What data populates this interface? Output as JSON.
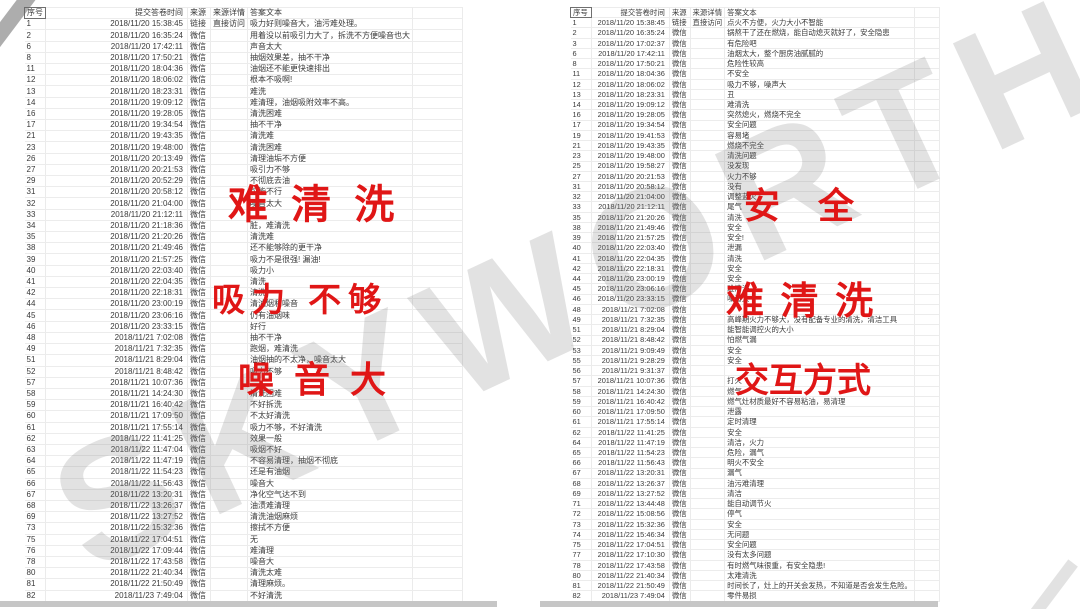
{
  "colors": {
    "accent_red": "#e01616",
    "watermark_gray": "#7d7d7d",
    "grid_line": "#ececec"
  },
  "watermark": {
    "text": "SKYWORTH"
  },
  "overlays": [
    {
      "text": "难 清 洗"
    },
    {
      "text": "吸力 不够"
    },
    {
      "text": "噪 音 大"
    },
    {
      "text": "安 全"
    },
    {
      "text": "难 清 洗"
    },
    {
      "text": "交互方式"
    }
  ],
  "sheets": {
    "left": {
      "headers": [
        "序号",
        "提交答卷时间",
        "来源",
        "来源详情",
        "答案文本",
        ""
      ],
      "rows": [
        [
          "1",
          "2018/11/20 15:38:45",
          "链接",
          "直接访问",
          "吸力好则噪音大，油污难处理。"
        ],
        [
          "2",
          "2018/11/20 16:35:24",
          "微信",
          "",
          "用着没以前吸引力大了，拆洗不方便噪音也大"
        ],
        [
          "6",
          "2018/11/20 17:42:11",
          "微信",
          "",
          "声音太大"
        ],
        [
          "8",
          "2018/11/20 17:50:21",
          "微信",
          "",
          "抽烟效果差，抽不干净"
        ],
        [
          "11",
          "2018/11/20 18:04:36",
          "微信",
          "",
          "油烟还不能更快速排出"
        ],
        [
          "12",
          "2018/11/20 18:06:02",
          "微信",
          "",
          "根本不吸啊!"
        ],
        [
          "13",
          "2018/11/20 18:23:31",
          "微信",
          "",
          "难洗"
        ],
        [
          "14",
          "2018/11/20 19:09:12",
          "微信",
          "",
          "难清理，油烟吸附效率不高。"
        ],
        [
          "16",
          "2018/11/20 19:28:05",
          "微信",
          "",
          "清洗困难"
        ],
        [
          "17",
          "2018/11/20 19:34:54",
          "微信",
          "",
          "抽不干净"
        ],
        [
          "21",
          "2018/11/20 19:43:35",
          "微信",
          "",
          "清洗难"
        ],
        [
          "23",
          "2018/11/20 19:48:00",
          "微信",
          "",
          "清洗困难"
        ],
        [
          "26",
          "2018/11/20 20:13:49",
          "微信",
          "",
          "清理油垢不方便"
        ],
        [
          "27",
          "2018/11/20 20:21:53",
          "微信",
          "",
          "吸引力不够"
        ],
        [
          "29",
          "2018/11/20 20:52:29",
          "微信",
          "",
          "不彻底去油"
        ],
        [
          "31",
          "2018/11/20 20:58:12",
          "微信",
          "",
          "可能不行"
        ],
        [
          "32",
          "2018/11/20 21:04:00",
          "微信",
          "",
          "噪音太大"
        ],
        [
          "33",
          "2018/11/20 21:12:11",
          "微信",
          "",
          ""
        ],
        [
          "34",
          "2018/11/20 21:18:36",
          "微信",
          "",
          "脏，难清洗"
        ],
        [
          "35",
          "2018/11/20 21:20:26",
          "微信",
          "",
          "清洗难"
        ],
        [
          "38",
          "2018/11/20 21:49:46",
          "微信",
          "",
          "还不能够除的更干净"
        ],
        [
          "39",
          "2018/11/20 21:57:25",
          "微信",
          "",
          "吸力不是很强! 漏油!"
        ],
        [
          "40",
          "2018/11/20 22:03:40",
          "微信",
          "",
          "吸力小"
        ],
        [
          "41",
          "2018/11/20 22:04:35",
          "微信",
          "",
          "清洗"
        ],
        [
          "42",
          "2018/11/20 22:18:31",
          "微信",
          "",
          "清洗"
        ],
        [
          "44",
          "2018/11/20 23:00:19",
          "微信",
          "",
          "清油烟和噪音"
        ],
        [
          "45",
          "2018/11/20 23:06:16",
          "微信",
          "",
          "仍有油烟味"
        ],
        [
          "46",
          "2018/11/20 23:33:15",
          "微信",
          "",
          "好行"
        ],
        [
          "48",
          "2018/11/21 7:02:08",
          "微信",
          "",
          "抽不干净"
        ],
        [
          "49",
          "2018/11/21 7:32:35",
          "微信",
          "",
          "跑烟，难清洗"
        ],
        [
          "51",
          "2018/11/21 8:29:04",
          "微信",
          "",
          "油烟抽的不太净，噪音太大"
        ],
        [
          "52",
          "2018/11/21 8:48:42",
          "微信",
          "",
          "吸力不够"
        ],
        [
          "57",
          "2018/11/21 10:07:36",
          "微信",
          "",
          ""
        ],
        [
          "58",
          "2018/11/21 14:24:30",
          "微信",
          "",
          "清洗困难"
        ],
        [
          "59",
          "2018/11/21 16:40:42",
          "微信",
          "",
          "不好拆洗"
        ],
        [
          "60",
          "2018/11/21 17:09:50",
          "微信",
          "",
          "不太好清洗"
        ],
        [
          "61",
          "2018/11/21 17:55:14",
          "微信",
          "",
          "吸力不够，不好清洗"
        ],
        [
          "62",
          "2018/11/22 11:41:25",
          "微信",
          "",
          "效果一般"
        ],
        [
          "63",
          "2018/11/22 11:47:04",
          "微信",
          "",
          "吸烟不好"
        ],
        [
          "64",
          "2018/11/22 11:47:19",
          "微信",
          "",
          "不容易清理，抽烟不彻底"
        ],
        [
          "65",
          "2018/11/22 11:54:23",
          "微信",
          "",
          "还是有油烟"
        ],
        [
          "66",
          "2018/11/22 11:56:43",
          "微信",
          "",
          "噪音大"
        ],
        [
          "67",
          "2018/11/22 13:20:31",
          "微信",
          "",
          "净化空气达不到"
        ],
        [
          "68",
          "2018/11/22 13:26:37",
          "微信",
          "",
          "油渍难清理"
        ],
        [
          "69",
          "2018/11/22 13:27:52",
          "微信",
          "",
          "清洗油烟麻烦"
        ],
        [
          "73",
          "2018/11/22 15:32:36",
          "微信",
          "",
          "擦拭不方便"
        ],
        [
          "75",
          "2018/11/22 17:04:51",
          "微信",
          "",
          "无"
        ],
        [
          "76",
          "2018/11/22 17:09:44",
          "微信",
          "",
          "难清理"
        ],
        [
          "78",
          "2018/11/22 17:43:58",
          "微信",
          "",
          "噪音大"
        ],
        [
          "80",
          "2018/11/22 21:40:34",
          "微信",
          "",
          "清洗太难"
        ],
        [
          "81",
          "2018/11/22 21:50:49",
          "微信",
          "",
          "清理麻烦。"
        ],
        [
          "82",
          "2018/11/23 7:49:04",
          "微信",
          "",
          "不好清洗"
        ]
      ]
    },
    "right": {
      "headers": [
        "序号",
        "提交答卷时间",
        "来源",
        "来源详情",
        "答案文本",
        ""
      ],
      "rows": [
        [
          "1",
          "2018/11/20 15:38:45",
          "链接",
          "直接访问",
          "点火不方便，火力大小不智能"
        ],
        [
          "2",
          "2018/11/20 16:35:24",
          "微信",
          "",
          "锅熬干了还在燃烧，能自动熄灭就好了，安全隐患"
        ],
        [
          "3",
          "2018/11/20 17:02:37",
          "微信",
          "",
          "有危险吧"
        ],
        [
          "6",
          "2018/11/20 17:42:11",
          "微信",
          "",
          "油烟太大，整个厨房油腻腻的"
        ],
        [
          "8",
          "2018/11/20 17:50:21",
          "微信",
          "",
          "危险性较高"
        ],
        [
          "11",
          "2018/11/20 18:04:36",
          "微信",
          "",
          "不安全"
        ],
        [
          "12",
          "2018/11/20 18:06:02",
          "微信",
          "",
          "吸力不够，噪声大"
        ],
        [
          "13",
          "2018/11/20 18:23:31",
          "微信",
          "",
          "丑"
        ],
        [
          "14",
          "2018/11/20 19:09:12",
          "微信",
          "",
          "难清洗"
        ],
        [
          "16",
          "2018/11/20 19:28:05",
          "微信",
          "",
          "突然熄火，燃烧不完全"
        ],
        [
          "17",
          "2018/11/20 19:34:54",
          "微信",
          "",
          "安全问题"
        ],
        [
          "19",
          "2018/11/20 19:41:53",
          "微信",
          "",
          "容易堵"
        ],
        [
          "21",
          "2018/11/20 19:43:35",
          "微信",
          "",
          "燃烧不完全"
        ],
        [
          "23",
          "2018/11/20 19:48:00",
          "微信",
          "",
          "清洗问题"
        ],
        [
          "25",
          "2018/11/20 19:58:27",
          "微信",
          "",
          "没发现"
        ],
        [
          "27",
          "2018/11/20 20:21:53",
          "微信",
          "",
          "火力不够"
        ],
        [
          "31",
          "2018/11/20 20:58:12",
          "微信",
          "",
          "没有"
        ],
        [
          "32",
          "2018/11/20 21:04:00",
          "微信",
          "",
          "调整蓝火"
        ],
        [
          "33",
          "2018/11/20 21:12:11",
          "微信",
          "",
          "尾气"
        ],
        [
          "35",
          "2018/11/20 21:20:26",
          "微信",
          "",
          "清洗"
        ],
        [
          "38",
          "2018/11/20 21:49:46",
          "微信",
          "",
          "安全"
        ],
        [
          "39",
          "2018/11/20 21:57:25",
          "微信",
          "",
          "安全!"
        ],
        [
          "40",
          "2018/11/20 22:03:40",
          "微信",
          "",
          "泄漏"
        ],
        [
          "41",
          "2018/11/20 22:04:35",
          "微信",
          "",
          "清洗"
        ],
        [
          "42",
          "2018/11/20 22:18:31",
          "微信",
          "",
          "安全"
        ],
        [
          "44",
          "2018/11/20 23:00:19",
          "微信",
          "",
          "安全"
        ],
        [
          "45",
          "2018/11/20 23:06:16",
          "微信",
          "",
          "难清洗"
        ],
        [
          "46",
          "2018/11/20 23:33:15",
          "微信",
          "",
          "噪音大"
        ],
        [
          "48",
          "2018/11/21 7:02:08",
          "微信",
          "",
          ""
        ],
        [
          "49",
          "2018/11/21 7:32:35",
          "微信",
          "",
          "高峰期火力不够大，没有配备专业的清洗，清洁工具"
        ],
        [
          "51",
          "2018/11/21 8:29:04",
          "微信",
          "",
          "能智能调控火的大小"
        ],
        [
          "52",
          "2018/11/21 8:48:42",
          "微信",
          "",
          "怕燃气漏"
        ],
        [
          "53",
          "2018/11/21 9:09:49",
          "微信",
          "",
          "安全"
        ],
        [
          "55",
          "2018/11/21 9:28:29",
          "微信",
          "",
          "安全"
        ],
        [
          "56",
          "2018/11/21 9:31:37",
          "微信",
          "",
          ""
        ],
        [
          "57",
          "2018/11/21 10:07:36",
          "微信",
          "",
          "打火"
        ],
        [
          "58",
          "2018/11/21 14:24:30",
          "微信",
          "",
          "燃气"
        ],
        [
          "59",
          "2018/11/21 16:40:42",
          "微信",
          "",
          "燃气灶材质最好不容易粘油，易清理"
        ],
        [
          "60",
          "2018/11/21 17:09:50",
          "微信",
          "",
          "泄露"
        ],
        [
          "61",
          "2018/11/21 17:55:14",
          "微信",
          "",
          "定时清理"
        ],
        [
          "62",
          "2018/11/22 11:41:25",
          "微信",
          "",
          "安全"
        ],
        [
          "64",
          "2018/11/22 11:47:19",
          "微信",
          "",
          "清洁，火力"
        ],
        [
          "65",
          "2018/11/22 11:54:23",
          "微信",
          "",
          "危险，漏气"
        ],
        [
          "66",
          "2018/11/22 11:56:43",
          "微信",
          "",
          "明火不安全"
        ],
        [
          "67",
          "2018/11/22 13:20:31",
          "微信",
          "",
          "漏气"
        ],
        [
          "68",
          "2018/11/22 13:26:37",
          "微信",
          "",
          "油污难清理"
        ],
        [
          "69",
          "2018/11/22 13:27:52",
          "微信",
          "",
          "清洁"
        ],
        [
          "71",
          "2018/11/22 13:44:48",
          "微信",
          "",
          "能自动调节火"
        ],
        [
          "72",
          "2018/11/22 15:08:56",
          "微信",
          "",
          "停气"
        ],
        [
          "73",
          "2018/11/22 15:32:36",
          "微信",
          "",
          "安全"
        ],
        [
          "74",
          "2018/11/22 15:46:34",
          "微信",
          "",
          "无问题"
        ],
        [
          "75",
          "2018/11/22 17:04:51",
          "微信",
          "",
          "安全问题"
        ],
        [
          "77",
          "2018/11/22 17:10:30",
          "微信",
          "",
          "没有太多问题"
        ],
        [
          "78",
          "2018/11/22 17:43:58",
          "微信",
          "",
          "有时燃气味很重，有安全隐患!"
        ],
        [
          "80",
          "2018/11/22 21:40:34",
          "微信",
          "",
          "太难清洗"
        ],
        [
          "81",
          "2018/11/22 21:50:49",
          "微信",
          "",
          "时间长了，灶上的开关会发热，不知道是否会发生危险。"
        ],
        [
          "82",
          "2018/11/23 7:49:04",
          "微信",
          "",
          "零件易损"
        ]
      ]
    }
  }
}
